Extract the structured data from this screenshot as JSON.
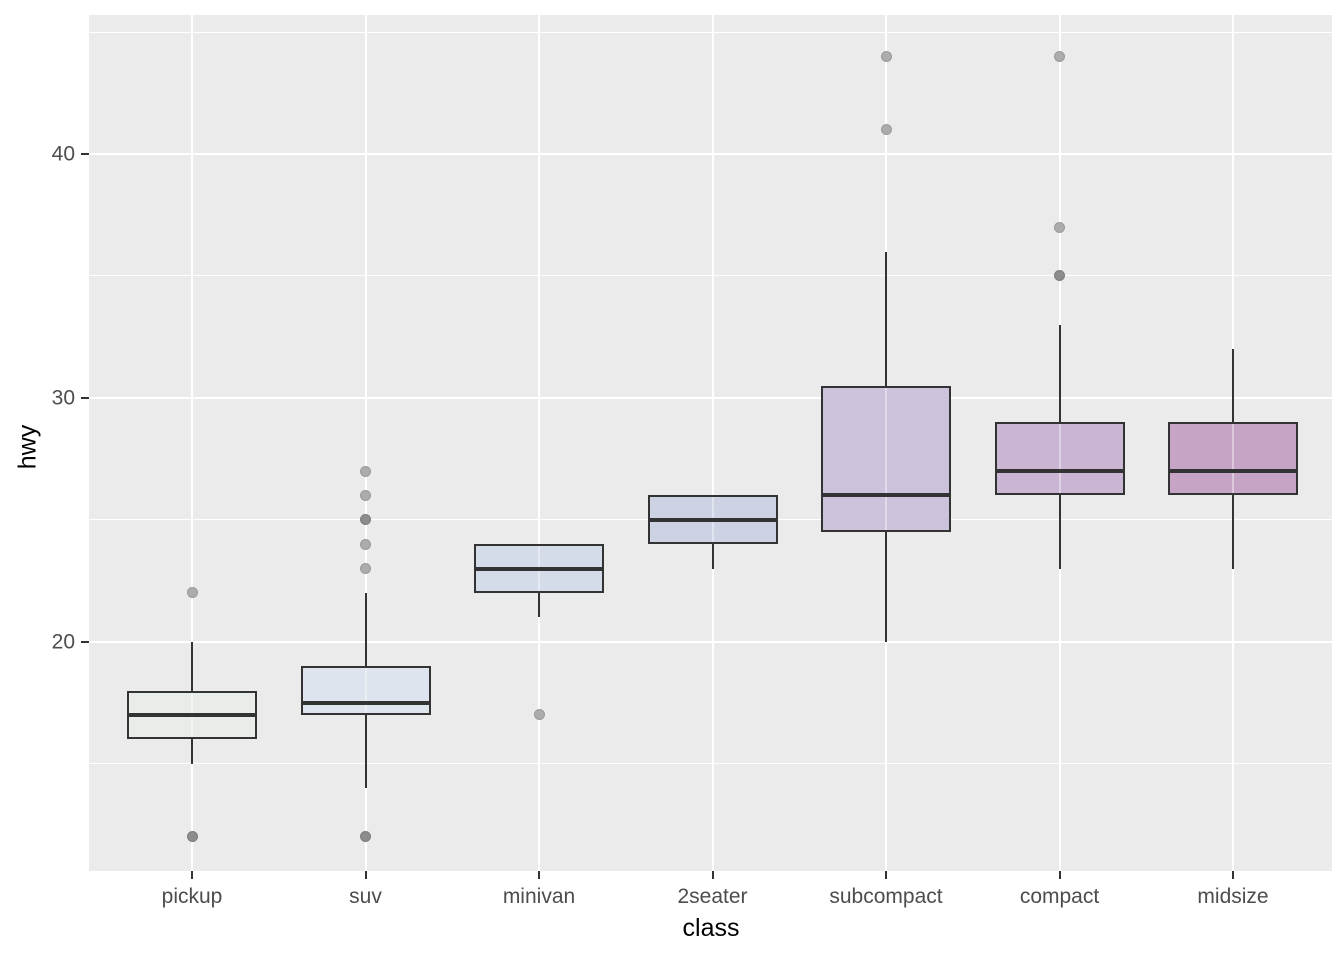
{
  "chart_data": {
    "type": "boxplot",
    "xlabel": "class",
    "ylabel": "hwy",
    "categories": [
      "pickup",
      "suv",
      "minivan",
      "2seater",
      "subcompact",
      "compact",
      "midsize"
    ],
    "series": [
      {
        "name": "pickup",
        "whisker_low": 15,
        "q1": 16,
        "median": 17,
        "q3": 18,
        "whisker_high": 20,
        "fill": "#E8EDEA",
        "outliers": [
          {
            "value": 22,
            "overlap": 1
          },
          {
            "value": 12,
            "overlap": 2
          }
        ]
      },
      {
        "name": "suv",
        "whisker_low": 14,
        "q1": 17,
        "median": 17.5,
        "q3": 19,
        "whisker_high": 22,
        "fill": "#DEE4ED",
        "outliers": [
          {
            "value": 27,
            "overlap": 1
          },
          {
            "value": 26,
            "overlap": 1
          },
          {
            "value": 25,
            "overlap": 2
          },
          {
            "value": 24,
            "overlap": 1
          },
          {
            "value": 23,
            "overlap": 1
          },
          {
            "value": 12,
            "overlap": 2
          }
        ]
      },
      {
        "name": "minivan",
        "whisker_low": 21,
        "q1": 22,
        "median": 23,
        "q3": 24,
        "whisker_high": 24,
        "fill": "#D4DCE9",
        "outliers": [
          {
            "value": 17,
            "overlap": 1
          }
        ]
      },
      {
        "name": "2seater",
        "whisker_low": 23,
        "q1": 24,
        "median": 25,
        "q3": 26,
        "whisker_high": 26,
        "fill": "#CED3E3",
        "outliers": []
      },
      {
        "name": "subcompact",
        "whisker_low": 20,
        "q1": 24.5,
        "median": 26,
        "q3": 30.5,
        "whisker_high": 36,
        "fill": "#CCC2DC",
        "outliers": [
          {
            "value": 44,
            "overlap": 1
          },
          {
            "value": 41,
            "overlap": 1
          }
        ]
      },
      {
        "name": "compact",
        "whisker_low": 23,
        "q1": 26,
        "median": 27,
        "q3": 29,
        "whisker_high": 33,
        "fill": "#CBB5D4",
        "outliers": [
          {
            "value": 44,
            "overlap": 1
          },
          {
            "value": 37,
            "overlap": 1
          },
          {
            "value": 35,
            "overlap": 2
          }
        ]
      },
      {
        "name": "midsize",
        "whisker_low": 23,
        "q1": 26,
        "median": 27,
        "q3": 29,
        "whisker_high": 32,
        "fill": "#C6A4C6",
        "outliers": []
      }
    ],
    "ylim": [
      10.6,
      45.7
    ],
    "y_ticks_major": [
      20,
      30,
      40
    ],
    "y_tick_labels": [
      "20",
      "30",
      "40"
    ],
    "y_ticks_minor": [
      15,
      25,
      35,
      45
    ],
    "grid": {
      "horizontal": "major+minor",
      "vertical": "major-only"
    },
    "legend": "none"
  },
  "style": {
    "page_bg": "#FFFFFF",
    "panel_bg": "#EBEBEB",
    "grid_color": "#FFFFFF",
    "box_border": "#333333",
    "median_color": "#333333",
    "whisker_color": "#333333",
    "tick_color": "#333333",
    "axis_text_color": "#4D4D4D",
    "axis_title_color": "#000000",
    "outlier_single": "#ACACAC",
    "outlier_single_border": "#9A9A9A",
    "outlier_double": "#8C8C8C",
    "outlier_double_border": "#7C7C7C"
  }
}
